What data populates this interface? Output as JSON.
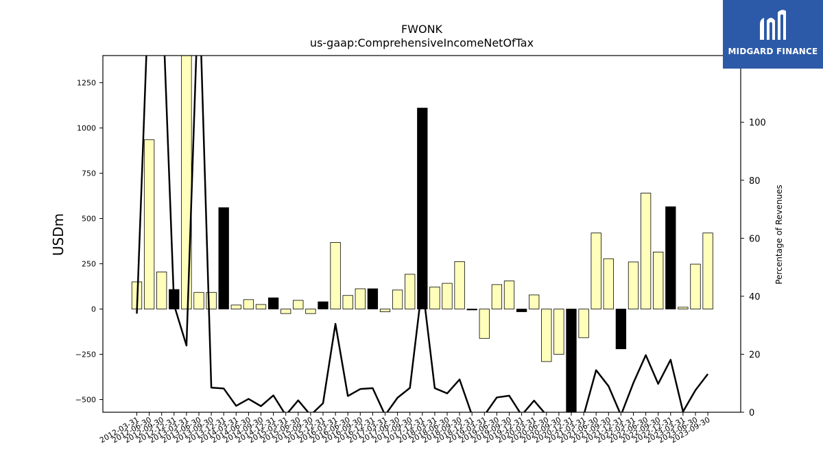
{
  "chart_data": {
    "type": "bar+line",
    "title": "FWONK",
    "subtitle": "us-gaap:ComprehensiveIncomeNetOfTax",
    "ylabel_left": "USDm",
    "ylabel_right": "Percentage of Revenues",
    "ylim_left": [
      -570,
      1400
    ],
    "ylim_right": [
      0,
      123
    ],
    "yticks_left": [
      -500,
      -250,
      0,
      250,
      500,
      750,
      1000,
      1250
    ],
    "yticks_right": [
      0,
      20,
      40,
      60,
      80,
      100
    ],
    "categories": [
      "2012-03-31",
      "2012-06-30",
      "2012-09-30",
      "2012-12-31",
      "2013-03-31",
      "2013-06-30",
      "2013-09-30",
      "2013-12-31",
      "2014-03-31",
      "2014-06-30",
      "2014-09-30",
      "2014-12-31",
      "2015-03-31",
      "2015-06-30",
      "2015-09-30",
      "2015-12-31",
      "2016-03-31",
      "2016-06-30",
      "2016-09-30",
      "2016-12-31",
      "2017-03-31",
      "2017-06-30",
      "2017-09-30",
      "2017-12-31",
      "2018-03-31",
      "2018-06-30",
      "2018-09-30",
      "2018-12-31",
      "2019-03-31",
      "2019-06-30",
      "2019-09-30",
      "2019-12-31",
      "2020-03-31",
      "2020-06-30",
      "2020-09-30",
      "2020-12-31",
      "2021-03-31",
      "2021-06-30",
      "2021-09-30",
      "2021-12-31",
      "2022-03-31",
      "2022-06-30",
      "2022-09-30",
      "2022-12-31",
      "2023-03-31",
      "2023-06-30",
      "2023-09-30"
    ],
    "bars": {
      "name": "ComprehensiveIncomeNetOfTax (USDm)",
      "values": [
        150,
        935,
        205,
        108,
        1400,
        92,
        92,
        560,
        22,
        52,
        25,
        62,
        -25,
        48,
        -25,
        40,
        368,
        75,
        112,
        112,
        -15,
        105,
        192,
        1110,
        122,
        142,
        262,
        -5,
        -162,
        135,
        155,
        -15,
        78,
        -290,
        -250,
        -570,
        -158,
        420,
        278,
        -220,
        260,
        640,
        315,
        565,
        10,
        248,
        420
      ],
      "highlight": [
        false,
        false,
        false,
        true,
        false,
        false,
        false,
        true,
        false,
        false,
        false,
        true,
        false,
        false,
        false,
        true,
        false,
        false,
        false,
        true,
        false,
        false,
        false,
        true,
        false,
        false,
        false,
        true,
        false,
        false,
        false,
        true,
        false,
        false,
        false,
        true,
        false,
        false,
        false,
        true,
        false,
        false,
        false,
        true,
        false,
        false,
        false
      ]
    },
    "line": {
      "name": "Percentage of Revenues",
      "values": [
        34,
        150,
        150,
        37,
        23,
        150,
        8.5,
        8.2,
        2.2,
        4.6,
        2.1,
        5.8,
        -1,
        4.1,
        -1,
        3.1,
        30.5,
        5.6,
        8,
        8.3,
        -1,
        5,
        8.4,
        44,
        8.3,
        6.5,
        11.3,
        -1,
        -1,
        5.1,
        5.7,
        -1,
        4,
        -1,
        -1,
        -1,
        -1,
        14.5,
        9,
        -1,
        10.1,
        19.7,
        9.8,
        18.1,
        0.2,
        7.6,
        13.2
      ]
    },
    "colors": {
      "bar_fill": "#ffffbb",
      "bar_highlight": "#000000",
      "bar_edge": "#000000",
      "line": "#000000",
      "logo_bg": "#2d5aa8"
    },
    "grid": false
  },
  "logo": {
    "text": "MIDGARD FINANCE",
    "icon": "midgard-m-logo-icon"
  }
}
